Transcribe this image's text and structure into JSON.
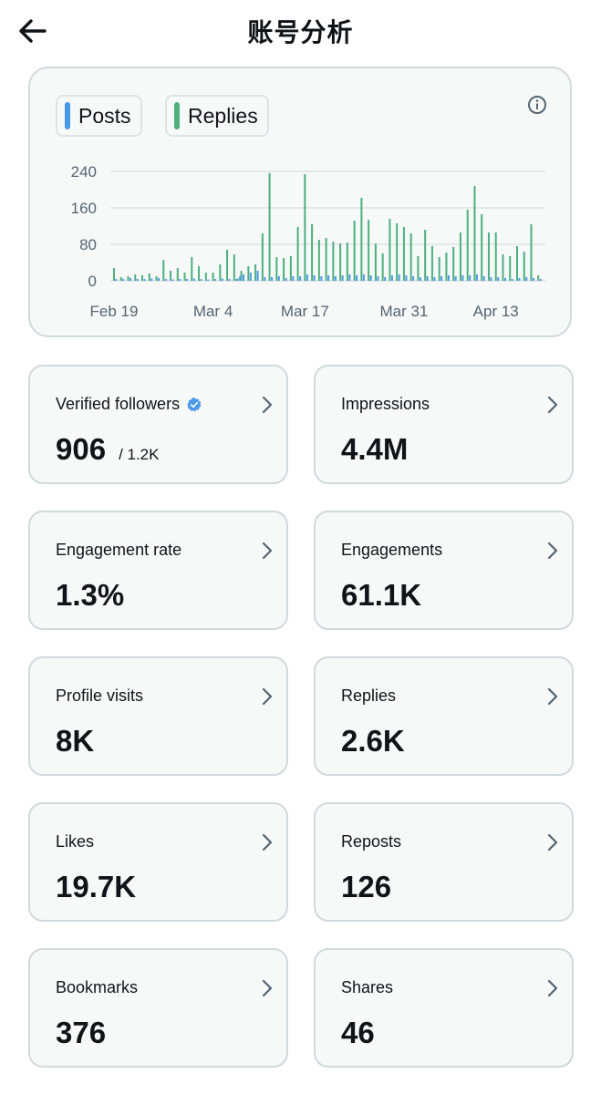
{
  "header": {
    "title": "账号分析"
  },
  "chart": {
    "legend": [
      {
        "label": "Posts",
        "color": "#4a99e9"
      },
      {
        "label": "Replies",
        "color": "#4caf7d"
      }
    ]
  },
  "chart_data": {
    "type": "bar",
    "title": "",
    "ylim": [
      0,
      240
    ],
    "y_ticks": [
      0,
      80,
      160,
      240
    ],
    "x_tick_labels": [
      {
        "label": "Feb 19",
        "day": 0
      },
      {
        "label": "Mar 4",
        "day": 14
      },
      {
        "label": "Mar 17",
        "day": 27
      },
      {
        "label": "Mar 31",
        "day": 41
      },
      {
        "label": "Apr 13",
        "day": 54
      }
    ],
    "series": [
      {
        "name": "Replies",
        "color": "#4caf7d",
        "values": [
          28,
          8,
          10,
          14,
          12,
          16,
          10,
          46,
          22,
          28,
          18,
          52,
          32,
          18,
          18,
          36,
          68,
          58,
          5,
          22,
          32,
          36,
          104,
          236,
          52,
          50,
          54,
          118,
          234,
          124,
          90,
          94,
          86,
          82,
          84,
          132,
          182,
          134,
          82,
          60,
          136,
          126,
          118,
          104,
          54,
          112,
          76,
          52,
          62,
          74,
          106,
          156,
          208,
          146,
          106,
          106,
          58,
          54,
          76,
          64,
          124,
          12
        ],
        "x_days": [
          0,
          1,
          2,
          3,
          4,
          5,
          6,
          7,
          8,
          9,
          10,
          11,
          12,
          13,
          14,
          15,
          16,
          17,
          17.5,
          18,
          19,
          20,
          21,
          22,
          23,
          24,
          25,
          26,
          27,
          28,
          29,
          30,
          31,
          32,
          33,
          34,
          35,
          36,
          37,
          38,
          39,
          40,
          41,
          42,
          43,
          44,
          45,
          46,
          47,
          48,
          49,
          50,
          51,
          52,
          53,
          54,
          55,
          56,
          57,
          58,
          59,
          60
        ]
      },
      {
        "name": "Posts",
        "color": "#4a99e9",
        "values": [
          4,
          4,
          6,
          4,
          4,
          5,
          6,
          4,
          3,
          4,
          4,
          5,
          4,
          3,
          4,
          5,
          4,
          4,
          10,
          14,
          18,
          22,
          8,
          8,
          10,
          6,
          10,
          10,
          14,
          12,
          10,
          12,
          10,
          12,
          14,
          12,
          14,
          12,
          10,
          8,
          12,
          14,
          12,
          10,
          8,
          10,
          8,
          10,
          12,
          10,
          12,
          12,
          14,
          10,
          8,
          8,
          6,
          4,
          6,
          8,
          6,
          4
        ],
        "x_days": [
          0,
          1,
          2,
          3,
          4,
          5,
          6,
          7,
          8,
          9,
          10,
          11,
          12,
          13,
          14,
          15,
          16,
          17,
          17.5,
          18,
          19,
          20,
          21,
          22,
          23,
          24,
          25,
          26,
          27,
          28,
          29,
          30,
          31,
          32,
          33,
          34,
          35,
          36,
          37,
          38,
          39,
          40,
          41,
          42,
          43,
          44,
          45,
          46,
          47,
          48,
          49,
          50,
          51,
          52,
          53,
          54,
          55,
          56,
          57,
          58,
          59,
          60
        ]
      }
    ]
  },
  "stats": [
    {
      "label": "Verified followers",
      "value": "906",
      "sub": "/ 1.2K",
      "verified": true
    },
    {
      "label": "Impressions",
      "value": "4.4M"
    },
    {
      "label": "Engagement rate",
      "value": "1.3%"
    },
    {
      "label": "Engagements",
      "value": "61.1K"
    },
    {
      "label": "Profile visits",
      "value": "8K"
    },
    {
      "label": "Replies",
      "value": "2.6K"
    },
    {
      "label": "Likes",
      "value": "19.7K"
    },
    {
      "label": "Reposts",
      "value": "126"
    },
    {
      "label": "Bookmarks",
      "value": "376"
    },
    {
      "label": "Shares",
      "value": "46"
    }
  ],
  "icons": {
    "back": "arrow-left-icon",
    "info": "info-icon",
    "chevron": "chevron-right-icon",
    "verified": "verified-badge-icon"
  }
}
